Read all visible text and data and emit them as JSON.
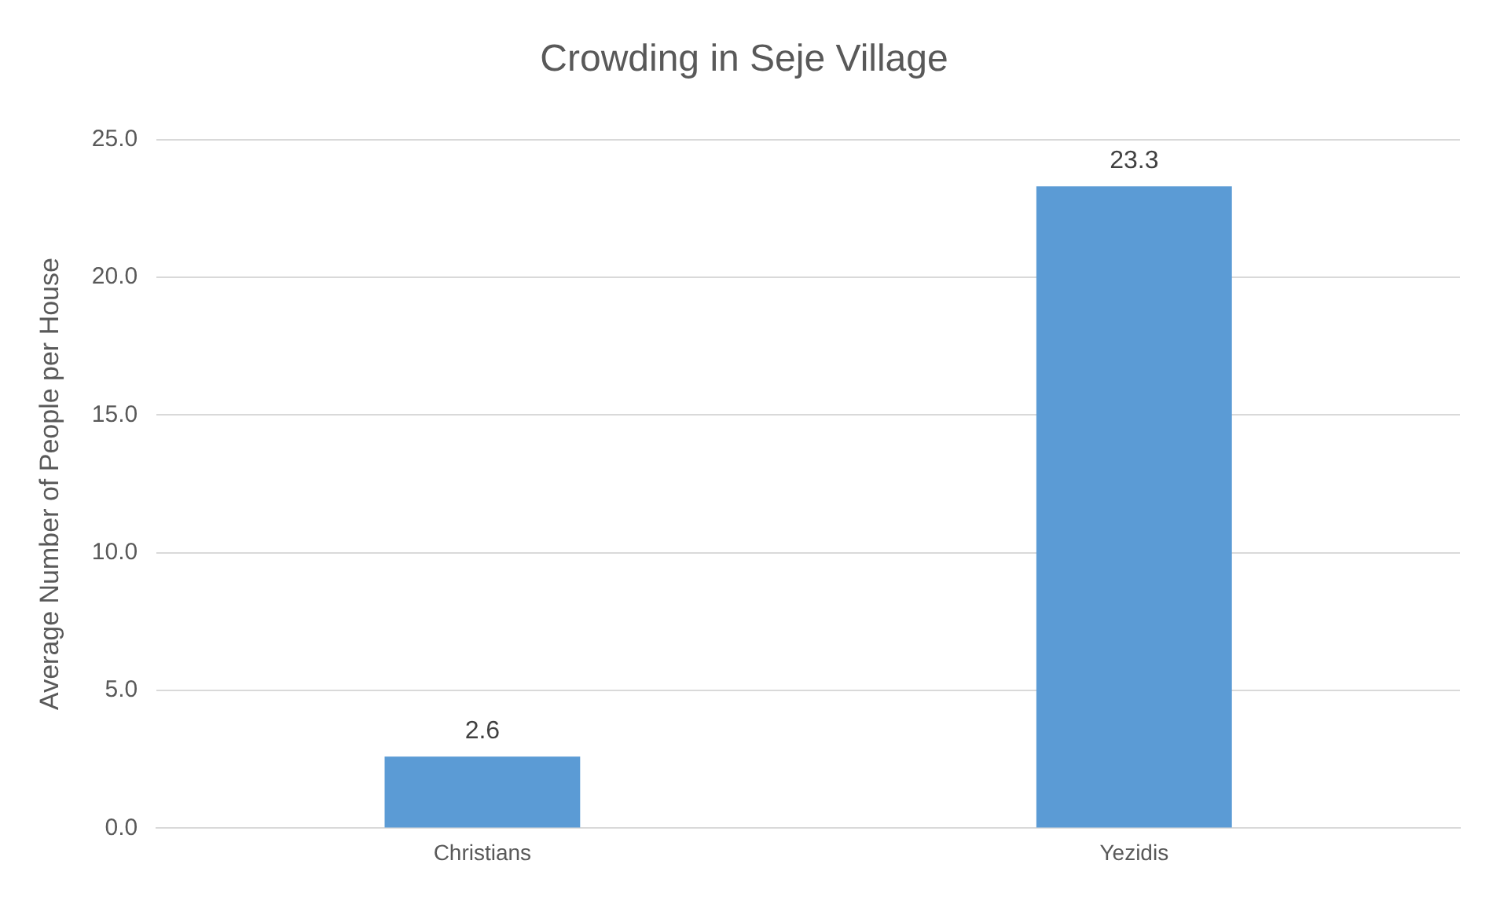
{
  "chart_data": {
    "type": "bar",
    "title": "Crowding in Seje Village",
    "ylabel": "Average Number of People per House",
    "categories": [
      "Christians",
      "Yezidis"
    ],
    "values": [
      2.6,
      23.3
    ],
    "color": "#5b9bd5",
    "ylim": [
      0,
      25
    ],
    "yticks": [
      {
        "value": 0,
        "label": "0.0"
      },
      {
        "value": 5,
        "label": "5.0"
      },
      {
        "value": 10,
        "label": "10.0"
      },
      {
        "value": 15,
        "label": "15.0"
      },
      {
        "value": 20,
        "label": "20.0"
      },
      {
        "value": 25,
        "label": "25.0"
      }
    ],
    "grid": "y",
    "data_labels": true
  }
}
